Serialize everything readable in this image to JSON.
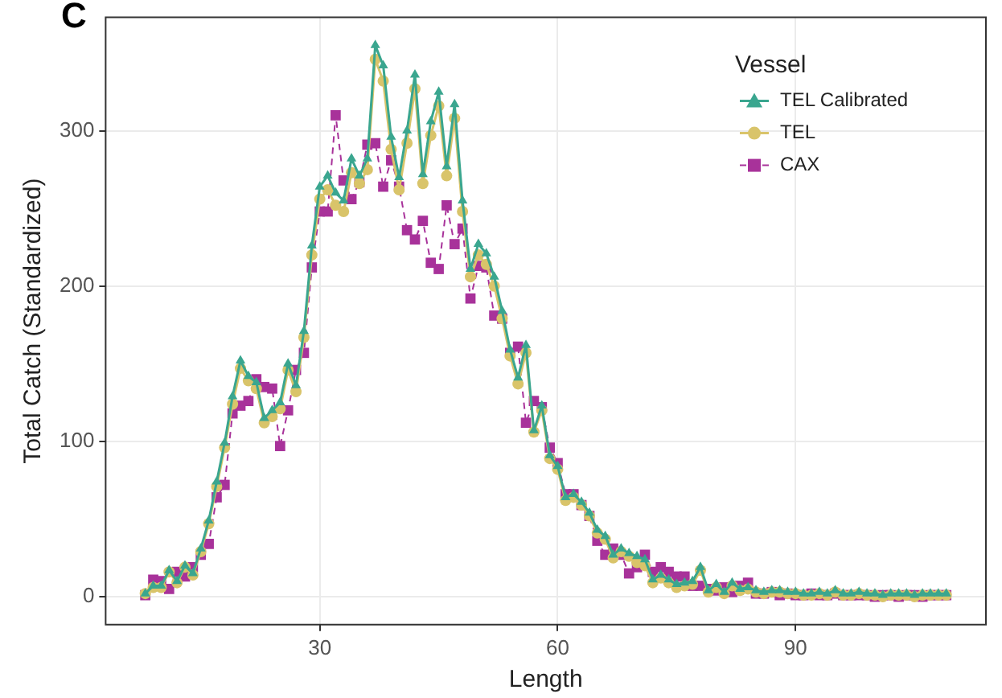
{
  "chart_data": {
    "type": "line",
    "xlabel": "Length",
    "ylabel": "Total Catch (Standardized)",
    "legend_title": "Vessel",
    "legend": "top right",
    "grid": true,
    "annotations": [
      "C"
    ],
    "xlim": [
      3,
      114
    ],
    "xticks": [
      30,
      60,
      90
    ],
    "ylim": [
      -18,
      373
    ],
    "yticks": [
      0,
      100,
      200,
      300
    ],
    "x": [
      8,
      9,
      10,
      11,
      12,
      13,
      14,
      15,
      16,
      17,
      18,
      19,
      20,
      21,
      22,
      23,
      24,
      25,
      26,
      27,
      28,
      29,
      30,
      31,
      32,
      33,
      34,
      35,
      36,
      37,
      38,
      39,
      40,
      41,
      42,
      43,
      44,
      45,
      46,
      47,
      48,
      49,
      50,
      51,
      52,
      53,
      54,
      55,
      56,
      57,
      58,
      59,
      60,
      61,
      62,
      63,
      64,
      65,
      66,
      67,
      68,
      69,
      70,
      71,
      72,
      73,
      74,
      75,
      76,
      77,
      78,
      79,
      80,
      81,
      82,
      83,
      84,
      85,
      86,
      87,
      88,
      89,
      90,
      91,
      92,
      93,
      94,
      95,
      96,
      97,
      98,
      99,
      100,
      101,
      102,
      103,
      104,
      105,
      106,
      107,
      108,
      109
    ],
    "series": [
      {
        "name": "TEL Calibrated",
        "color": "#3aa68f",
        "marker": "triangle",
        "line_style": "solid",
        "values": [
          2,
          7,
          7,
          17,
          10,
          20,
          15,
          31,
          49,
          74,
          99,
          129,
          152,
          142,
          138,
          115,
          120,
          125,
          150,
          136,
          171,
          226,
          264,
          271,
          260,
          255,
          282,
          271,
          282,
          355,
          342,
          296,
          270,
          300,
          336,
          272,
          306,
          325,
          277,
          317,
          255,
          211,
          227,
          221,
          206,
          184,
          159,
          141,
          162,
          107,
          123,
          91,
          84,
          64,
          66,
          61,
          54,
          43,
          39,
          27,
          31,
          28,
          26,
          24,
          11,
          14,
          11,
          8,
          9,
          10,
          19,
          4,
          8,
          3,
          9,
          5,
          6,
          4,
          3,
          4,
          4,
          3,
          3,
          2,
          2,
          3,
          2,
          4,
          2,
          2,
          3,
          2,
          2,
          1,
          2,
          2,
          2,
          1,
          2,
          2,
          2,
          2
        ]
      },
      {
        "name": "TEL",
        "color": "#d9c46a",
        "marker": "circle",
        "line_style": "solid",
        "values": [
          2,
          6,
          6,
          16,
          9,
          19,
          14,
          29,
          47,
          71,
          96,
          124,
          147,
          139,
          134,
          112,
          116,
          121,
          146,
          132,
          167,
          220,
          256,
          262,
          252,
          248,
          273,
          266,
          275,
          346,
          332,
          288,
          262,
          292,
          327,
          266,
          297,
          316,
          271,
          308,
          248,
          206,
          220,
          214,
          200,
          179,
          155,
          137,
          157,
          106,
          120,
          89,
          82,
          62,
          64,
          59,
          52,
          41,
          37,
          25,
          29,
          26,
          22,
          20,
          9,
          12,
          9,
          6,
          7,
          8,
          17,
          3,
          6,
          2,
          7,
          4,
          5,
          3,
          2,
          3,
          3,
          2,
          2,
          1,
          1,
          2,
          1,
          3,
          1,
          1,
          2,
          1,
          1,
          0,
          1,
          1,
          1,
          0,
          1,
          1,
          1,
          1
        ]
      },
      {
        "name": "CAX",
        "color": "#a8329a",
        "marker": "square",
        "line_style": "dashed",
        "values": [
          1,
          11,
          10,
          5,
          16,
          13,
          19,
          27,
          34,
          64,
          72,
          118,
          123,
          126,
          140,
          135,
          134,
          97,
          120,
          146,
          157,
          212,
          248,
          248,
          310,
          268,
          256,
          267,
          291,
          292,
          264,
          281,
          264,
          236,
          230,
          242,
          215,
          211,
          252,
          227,
          237,
          192,
          213,
          212,
          181,
          179,
          157,
          161,
          112,
          126,
          122,
          96,
          86,
          66,
          66,
          59,
          52,
          36,
          27,
          31,
          27,
          15,
          19,
          27,
          16,
          19,
          16,
          13,
          13,
          7,
          7,
          5,
          4,
          6,
          3,
          7,
          9,
          2,
          2,
          3,
          1,
          2,
          1,
          1,
          2,
          1,
          1,
          2,
          1,
          1,
          1,
          1,
          0,
          1,
          1,
          0,
          1,
          1,
          0,
          1,
          1,
          1
        ]
      }
    ]
  }
}
